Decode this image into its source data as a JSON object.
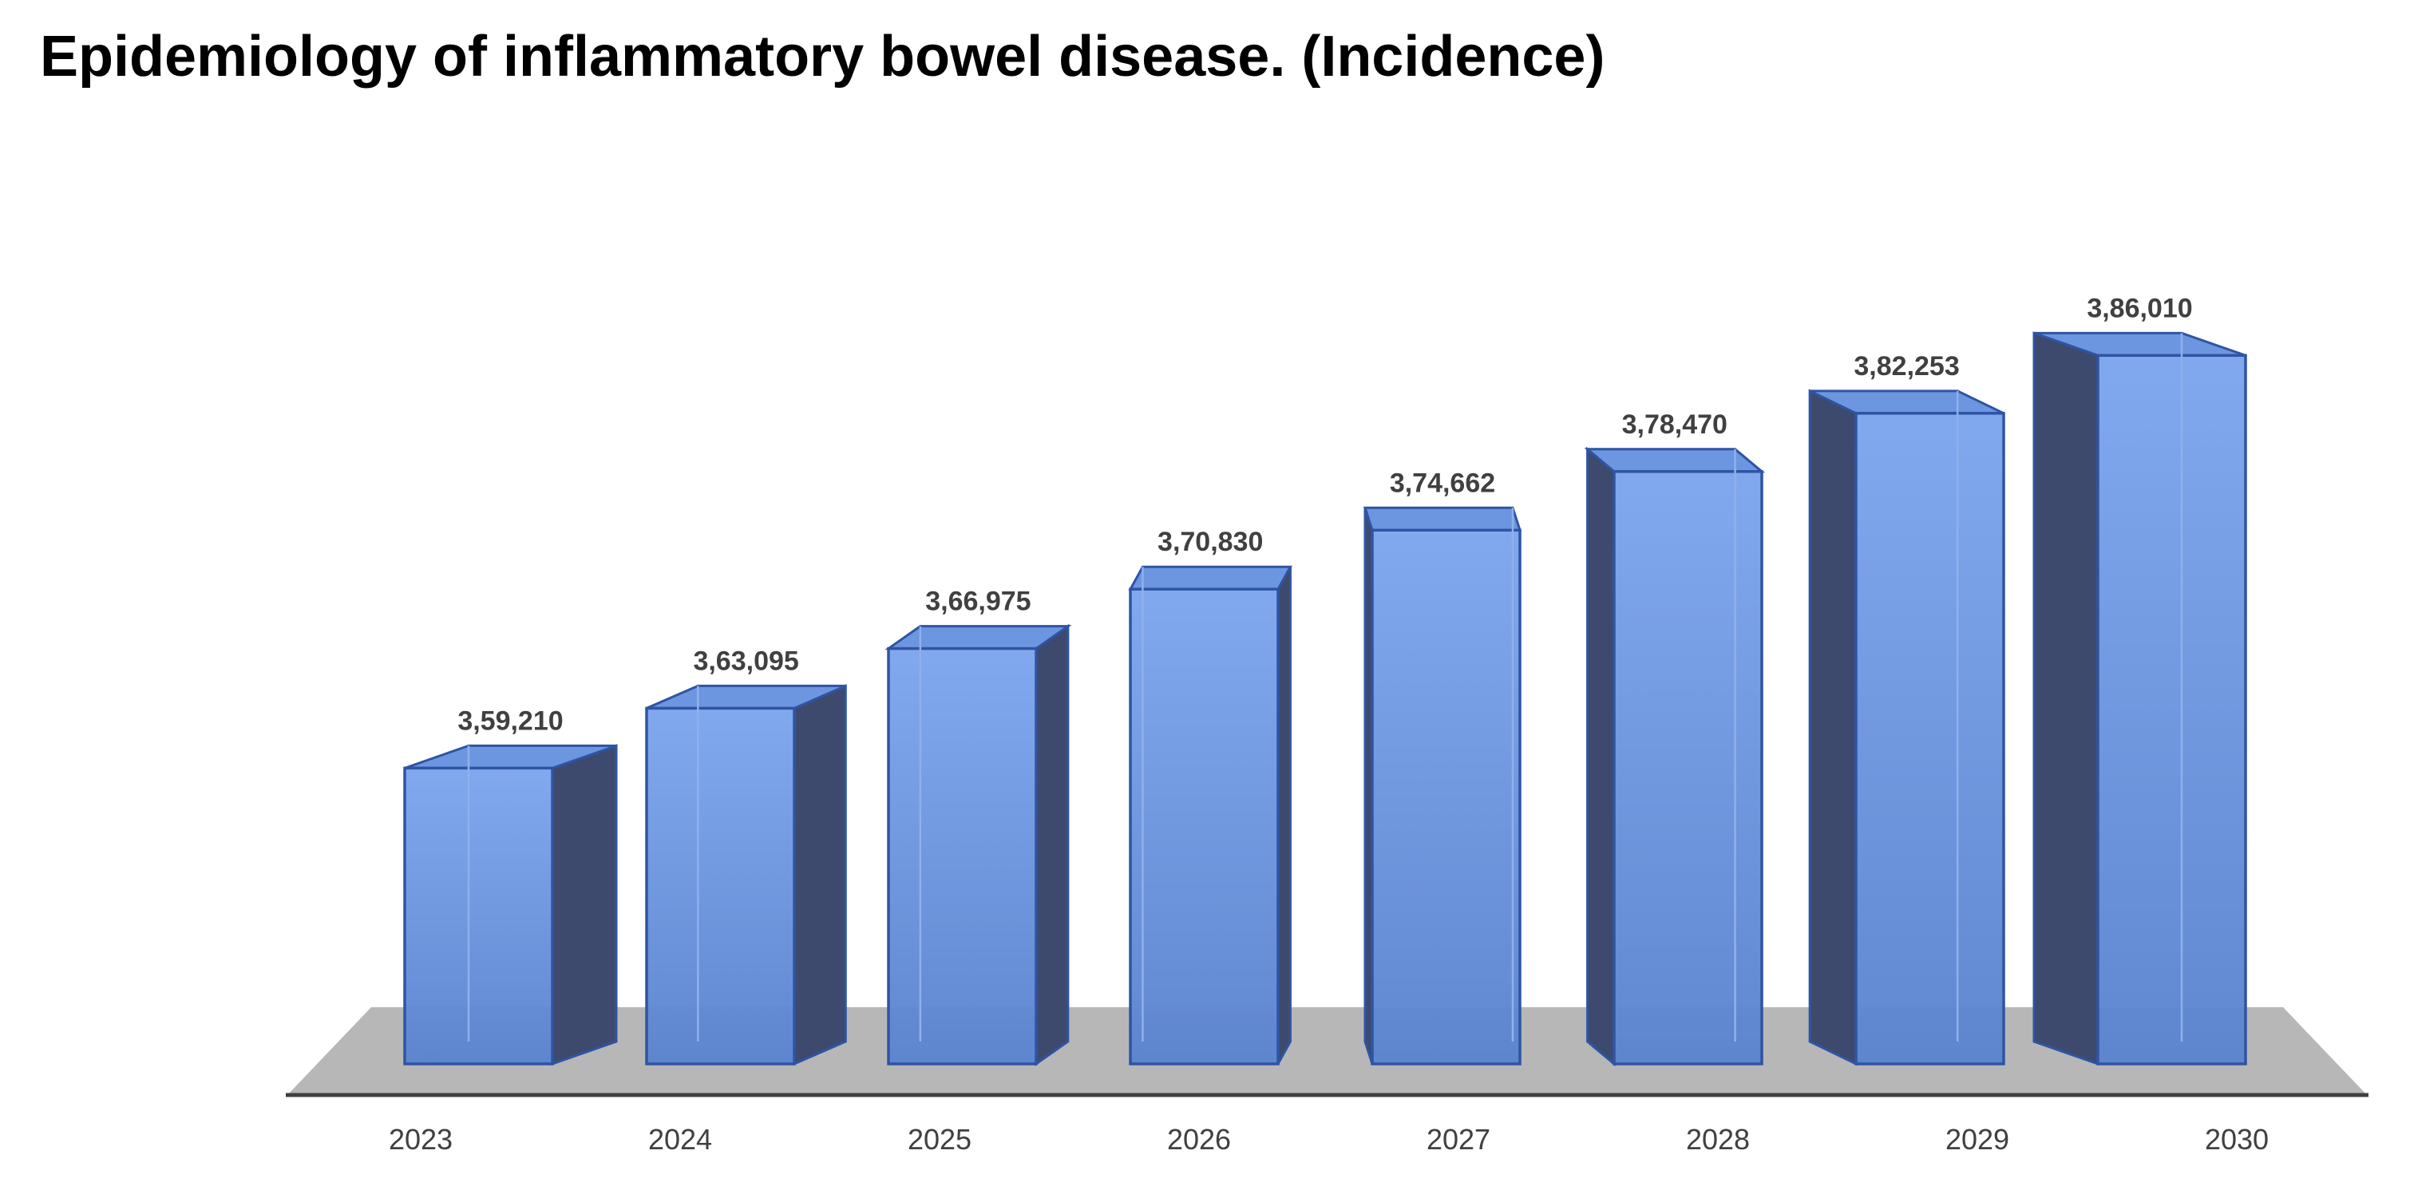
{
  "chart_data": {
    "type": "bar",
    "title": "Epidemiology of inflammatory bowel disease. (Incidence)",
    "categories": [
      "2023",
      "2024",
      "2025",
      "2026",
      "2027",
      "2028",
      "2029",
      "2030"
    ],
    "values": [
      359210,
      363095,
      366975,
      370830,
      374662,
      378470,
      382253,
      386010
    ],
    "data_labels": [
      "3,59,210",
      "3,63,095",
      "3,66,975",
      "3,70,830",
      "3,74,662",
      "3,78,470",
      "3,82,253",
      "3,86,010"
    ],
    "xlabel": "",
    "ylabel": "",
    "ylim": [
      340000,
      390000
    ],
    "grid": false,
    "legend": "none",
    "style": "3d-column",
    "colors": {
      "bar_front": "#5b86cf",
      "bar_edge": "#2f54a3",
      "bar_side": "#3d4a6d",
      "floor": "#b7b7b7",
      "axis": "#404040"
    }
  }
}
